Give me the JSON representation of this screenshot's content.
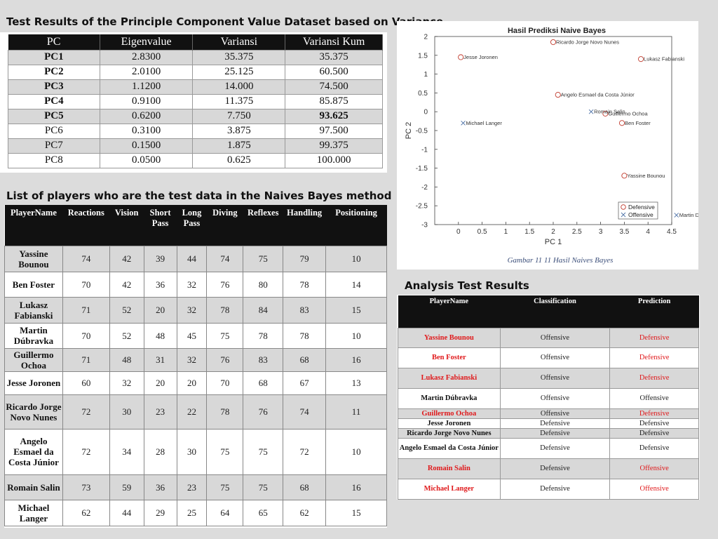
{
  "pca": {
    "heading": "Test Results of the Principle Component Value Dataset based on Variance",
    "headers": [
      "PC",
      "Eigenvalue",
      "Variansi",
      "Variansi Kum"
    ],
    "rows": [
      [
        "PC1",
        "2.8300",
        "35.375",
        "35.375"
      ],
      [
        "PC2",
        "2.0100",
        "25.125",
        "60.500"
      ],
      [
        "PC3",
        "1.1200",
        "14.000",
        "74.500"
      ],
      [
        "PC4",
        "0.9100",
        "11.375",
        "85.875"
      ],
      [
        "PC5",
        "0.6200",
        "7.750",
        "93.625"
      ],
      [
        "PC6",
        "0.3100",
        "3.875",
        "97.500"
      ],
      [
        "PC7",
        "0.1500",
        "1.875",
        "99.375"
      ],
      [
        "PC8",
        "0.0500",
        "0.625",
        "100.000"
      ]
    ]
  },
  "players": {
    "heading": "List of players who are the test data in the Naives Bayes method",
    "headers": [
      "PlayerName",
      "Reactions",
      "Vision",
      "Short Pass",
      "Long Pass",
      "Diving",
      "Reflexes",
      "Handling",
      "Positioning"
    ],
    "rows": [
      [
        "Yassine Bounou",
        "74",
        "42",
        "39",
        "44",
        "74",
        "75",
        "79",
        "10"
      ],
      [
        "Ben Foster",
        "70",
        "42",
        "36",
        "32",
        "76",
        "80",
        "78",
        "14"
      ],
      [
        "Lukasz Fabianski",
        "71",
        "52",
        "20",
        "32",
        "78",
        "84",
        "83",
        "15"
      ],
      [
        "Martin Dúbravka",
        "70",
        "52",
        "48",
        "45",
        "75",
        "78",
        "78",
        "10"
      ],
      [
        "Guillermo Ochoa",
        "71",
        "48",
        "31",
        "32",
        "76",
        "83",
        "68",
        "16"
      ],
      [
        "Jesse Joronen",
        "60",
        "32",
        "20",
        "20",
        "70",
        "68",
        "67",
        "13"
      ],
      [
        "Ricardo Jorge Novo Nunes",
        "72",
        "30",
        "23",
        "22",
        "78",
        "76",
        "74",
        "11"
      ],
      [
        "Angelo Esmael da Costa Júnior",
        "72",
        "34",
        "28",
        "30",
        "75",
        "75",
        "72",
        "10"
      ],
      [
        "Romain Salin",
        "73",
        "59",
        "36",
        "23",
        "75",
        "75",
        "68",
        "16"
      ],
      [
        "Michael Langer",
        "62",
        "44",
        "29",
        "25",
        "64",
        "65",
        "62",
        "15"
      ]
    ]
  },
  "analysis": {
    "heading": "Analysis Test Results",
    "headers": [
      "PlayerName",
      "Classification",
      "Prediction"
    ],
    "rows": [
      {
        "name": "Yassine Bounou",
        "classification": "Offensive",
        "prediction": "Defensive",
        "mismatch": true
      },
      {
        "name": "Ben Foster",
        "classification": "Offensive",
        "prediction": "Defensive",
        "mismatch": true
      },
      {
        "name": "Lukasz Fabianski",
        "classification": "Offensive",
        "prediction": "Defensive",
        "mismatch": true
      },
      {
        "name": "Martin Dúbravka",
        "classification": "Offensive",
        "prediction": "Offensive",
        "mismatch": false
      },
      {
        "name": "Guillermo Ochoa",
        "classification": "Offensive",
        "prediction": "Defensive",
        "mismatch": true
      },
      {
        "name": "Jesse Joronen",
        "classification": "Defensive",
        "prediction": "Defensive",
        "mismatch": false
      },
      {
        "name": "Ricardo Jorge Novo Nunes",
        "classification": "Defensive",
        "prediction": "Defensive",
        "mismatch": false
      },
      {
        "name": "Angelo Esmael da Costa Júnior",
        "classification": "Defensive",
        "prediction": "Defensive",
        "mismatch": false
      },
      {
        "name": "Romain Salin",
        "classification": "Defensive",
        "prediction": "Offensive",
        "mismatch": true
      },
      {
        "name": "Michael Langer",
        "classification": "Defensive",
        "prediction": "Offensive",
        "mismatch": true
      }
    ],
    "mismatch_color": "#e0191b"
  },
  "chart_data": {
    "type": "scatter",
    "title": "Hasil Prediksi Naive Bayes",
    "xlabel": "PC 1",
    "ylabel": "PC 2",
    "xlim": [
      -0.5,
      4.5
    ],
    "ylim": [
      -3,
      2
    ],
    "xticks": [
      "0",
      "0.5",
      "1",
      "1.5",
      "2",
      "2.5",
      "3",
      "3.5",
      "4",
      "4.5"
    ],
    "yticks": [
      "2",
      "1.5",
      "1",
      "0.5",
      "0",
      "-0.5",
      "-1",
      "-1.5",
      "-2",
      "-2.5",
      "-3"
    ],
    "caption": "Gambar 11 11 Hasil Naives Bayes",
    "legend_position": "bottom-right",
    "series": [
      {
        "name": "Defensive",
        "marker": "circle",
        "color": "#c0392b",
        "points": [
          {
            "x": 0.05,
            "y": 1.45,
            "label": "Jesse Joronen"
          },
          {
            "x": 2.0,
            "y": 1.85,
            "label": "Ricardo Jorge Novo Nunes"
          },
          {
            "x": 3.85,
            "y": 1.4,
            "label": "Lukasz Fabianski"
          },
          {
            "x": 2.1,
            "y": 0.45,
            "label": "Angelo Esmael da Costa Júnior"
          },
          {
            "x": 3.1,
            "y": -0.05,
            "label": "Guillermo Ochoa"
          },
          {
            "x": 3.45,
            "y": -0.3,
            "label": "Ben Foster"
          },
          {
            "x": 3.5,
            "y": -1.7,
            "label": "Yassine Bounou"
          }
        ]
      },
      {
        "name": "Offensive",
        "marker": "x",
        "color": "#4a6fa5",
        "points": [
          {
            "x": 0.1,
            "y": -0.3,
            "label": "Michael Langer"
          },
          {
            "x": 2.8,
            "y": 0.0,
            "label": "Romain Salin"
          },
          {
            "x": 4.6,
            "y": -2.75,
            "label": "Martin Dúbravka"
          }
        ]
      }
    ]
  }
}
